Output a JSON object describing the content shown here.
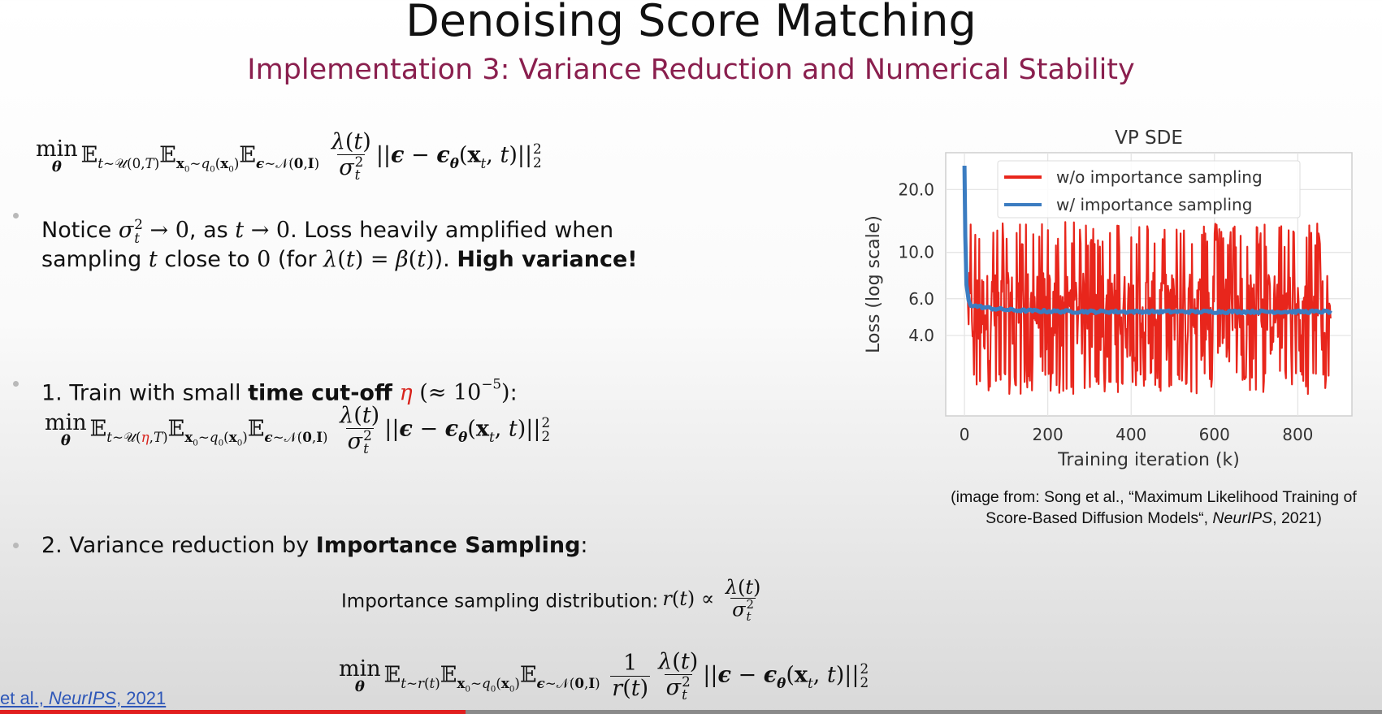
{
  "slide": {
    "title": "Denoising Score Matching",
    "subtitle": "Implementation 3: Variance Reduction and Numerical Stability"
  },
  "bullets": {
    "notice": {
      "line1_a": "Notice ",
      "line1_b": ", as ",
      "line1_c": ". Loss heavily amplified when",
      "line2_a": "sampling ",
      "line2_b": " close to ",
      "line2_c": " (for ",
      "line2_d": ").",
      "line2_bold": "High variance!"
    },
    "item1": {
      "text_a": "1. Train with small ",
      "bold": "time cut-off",
      "text_b": ":"
    },
    "item2": {
      "text_a": "2. Variance reduction by ",
      "bold": "Importance Sampling",
      "text_b": ":"
    },
    "importance_label": "Importance sampling distribution:"
  },
  "chart_data": {
    "type": "line",
    "title": "VP SDE",
    "xlabel": "Training iteration (k)",
    "ylabel": "Loss (log scale)",
    "y_scale": "log",
    "xlim": [
      -45,
      930
    ],
    "ylim": [
      1.65,
      30
    ],
    "x_ticks": [
      0,
      200,
      400,
      600,
      800
    ],
    "x_tick_labels": [
      "0",
      "200",
      "400",
      "600",
      "800"
    ],
    "y_ticks": [
      4.0,
      6.0,
      10.0,
      20.0
    ],
    "y_tick_labels": [
      "4.0",
      "6.0",
      "10.0",
      "20.0"
    ],
    "grid": true,
    "legend_position": "top-right",
    "series": [
      {
        "name": "w/o importance sampling",
        "color": "#e8261c",
        "x_range": [
          0,
          880
        ],
        "initial_peak": 26,
        "upper_envelope": 14,
        "lower_envelope": 2.1
      },
      {
        "name": "w/ importance sampling",
        "color": "#3b7cc1",
        "x_range": [
          0,
          880
        ],
        "initial_peak": 26,
        "plateau": 5.2
      }
    ]
  },
  "citation": {
    "line1": "(image from: Song et al., “Maximum Likelihood Training of",
    "line2_a": "Score-Based Diffusion Models“, ",
    "line2_italic": "NeurIPS",
    "line2_b": ", 2021)"
  },
  "footer": {
    "ref_a": "et al., ",
    "ref_italic": "NeurIPS",
    "ref_b": ", 2021"
  },
  "video_progress": 0.337
}
